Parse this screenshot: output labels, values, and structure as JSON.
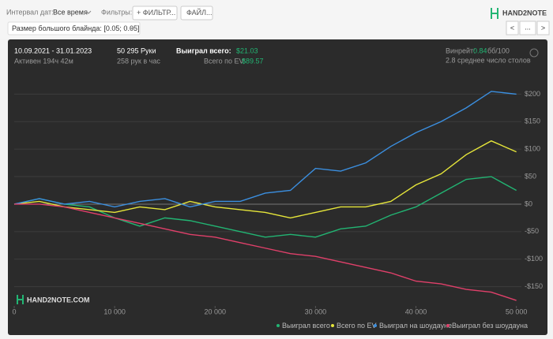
{
  "toolbar": {
    "date_label": "Интервал дат:",
    "date_value": "Все время",
    "filters_label": "Фильтры:",
    "filter_button": "+ ФИЛЬТР...",
    "file_button": "ФАЙЛ...",
    "logo": "HAND2NOTE"
  },
  "filter_chip": "Размер большого блайнда: [0.05; 0.05]",
  "nav": {
    "prev": "<",
    "more": "...",
    "next": ">"
  },
  "stats": {
    "dates": "10.09.2021 - 31.01.2023",
    "active": "Активен 194ч 42м",
    "hands": "50 295 Руки",
    "hands_per_hour": "258 рук в час",
    "won_label": "Выиграл всего:",
    "won_value": "$21.03",
    "ev_label": "Всего по EV:",
    "ev_value": "$89.57",
    "winrate_label": "Винрейт:",
    "winrate_value": "0.84",
    "winrate_unit": "бб/100",
    "tables": "2.8 среднее число столов"
  },
  "watermark": "HAND2NOTE.COM",
  "chart_data": {
    "type": "line",
    "x": [
      0,
      2500,
      5000,
      7500,
      10000,
      12500,
      15000,
      17500,
      20000,
      22500,
      25000,
      27500,
      30000,
      32500,
      35000,
      37500,
      40000,
      42500,
      45000,
      47500,
      50000
    ],
    "series": [
      {
        "name": "Выиграл всего",
        "color": "#22b573",
        "values": [
          0,
          10,
          0,
          -5,
          -25,
          -40,
          -25,
          -30,
          -40,
          -50,
          -60,
          -55,
          -60,
          -45,
          -40,
          -20,
          -5,
          20,
          45,
          50,
          25
        ]
      },
      {
        "name": "Всего по EV",
        "color": "#e6e63a",
        "values": [
          0,
          5,
          -5,
          -10,
          -15,
          -5,
          -10,
          5,
          -5,
          -10,
          -15,
          -25,
          -15,
          -5,
          -5,
          5,
          35,
          55,
          90,
          115,
          95
        ]
      },
      {
        "name": "Выиграл на шоудауне",
        "color": "#3b8fe0",
        "values": [
          0,
          10,
          0,
          5,
          -5,
          5,
          10,
          -5,
          5,
          5,
          20,
          25,
          65,
          60,
          75,
          105,
          130,
          150,
          175,
          205,
          200
        ]
      },
      {
        "name": "Выиграл без шоудауна",
        "color": "#e0406a",
        "values": [
          0,
          0,
          -5,
          -15,
          -25,
          -35,
          -45,
          -55,
          -60,
          -70,
          -80,
          -90,
          -95,
          -105,
          -115,
          -125,
          -140,
          -145,
          -155,
          -160,
          -175
        ]
      }
    ],
    "xlim": [
      0,
      50500
    ],
    "ylim": [
      -185,
      235
    ],
    "xticks": [
      0,
      {
        "value": 10000,
        "label": "10 000"
      },
      {
        "value": 20000,
        "label": "20 000"
      },
      {
        "value": 30000,
        "label": "30 000"
      },
      {
        "value": 40000,
        "label": "40 000"
      },
      {
        "value": 50000,
        "label": "50 000"
      }
    ],
    "yticks": [
      {
        "value": -150,
        "label": "-$150"
      },
      {
        "value": -100,
        "label": "-$100"
      },
      {
        "value": -50,
        "label": "-$50"
      },
      {
        "value": 0,
        "label": "$0"
      },
      {
        "value": 50,
        "label": "$50"
      },
      {
        "value": 100,
        "label": "$100"
      },
      {
        "value": 150,
        "label": "$150"
      },
      {
        "value": 200,
        "label": "$200"
      }
    ],
    "grid": true
  }
}
